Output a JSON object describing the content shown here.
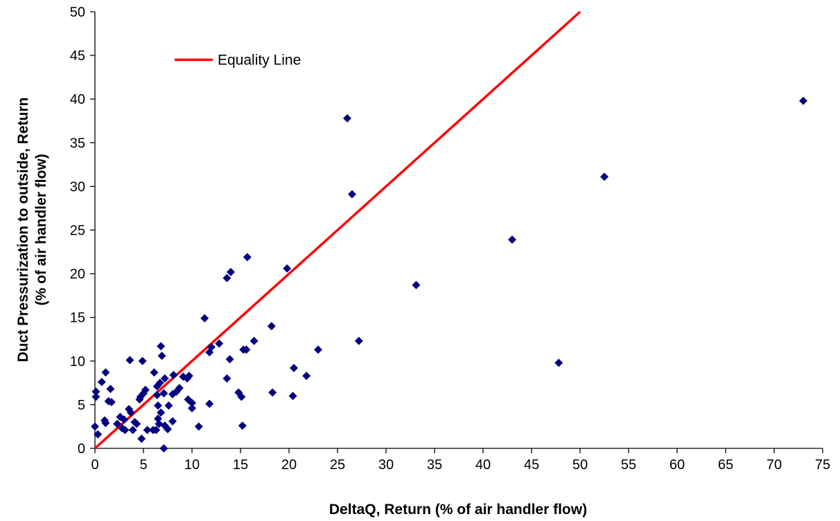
{
  "chart_data": {
    "type": "scatter",
    "xlabel": "DeltaQ, Return (% of air handler flow)",
    "ylabel_lines": [
      "Duct Pressurization to outside, Return",
      "(% of air handler flow)"
    ],
    "xlim": [
      0,
      75
    ],
    "ylim": [
      0,
      50
    ],
    "xticks": [
      0,
      5,
      10,
      15,
      20,
      25,
      30,
      35,
      40,
      45,
      50,
      55,
      60,
      65,
      70,
      75
    ],
    "yticks": [
      0,
      5,
      10,
      15,
      20,
      25,
      30,
      35,
      40,
      45,
      50
    ],
    "grid": false,
    "legend_position": "top-left",
    "lines": [
      {
        "name": "Equality Line",
        "color": "#ff0000",
        "points": [
          [
            0,
            0
          ],
          [
            50,
            50
          ]
        ]
      }
    ],
    "scatter": {
      "color": "#000080",
      "marker": "diamond",
      "points": [
        [
          73.0,
          39.8
        ],
        [
          52.5,
          31.1
        ],
        [
          43.0,
          23.9
        ],
        [
          47.8,
          9.8
        ],
        [
          33.1,
          18.7
        ],
        [
          26.0,
          37.8
        ],
        [
          26.5,
          29.1
        ],
        [
          27.2,
          12.3
        ],
        [
          23.0,
          11.3
        ],
        [
          21.8,
          8.3
        ],
        [
          20.5,
          9.2
        ],
        [
          20.4,
          6.0
        ],
        [
          19.8,
          20.6
        ],
        [
          18.2,
          14.0
        ],
        [
          18.3,
          6.4
        ],
        [
          16.4,
          12.3
        ],
        [
          15.7,
          21.9
        ],
        [
          15.6,
          11.3
        ],
        [
          15.3,
          11.3
        ],
        [
          15.1,
          5.9
        ],
        [
          15.2,
          2.6
        ],
        [
          14.8,
          6.4
        ],
        [
          14.0,
          20.2
        ],
        [
          13.6,
          19.5
        ],
        [
          13.9,
          10.2
        ],
        [
          13.6,
          8.0
        ],
        [
          12.8,
          12.0
        ],
        [
          12.0,
          11.6
        ],
        [
          11.8,
          11.0
        ],
        [
          11.8,
          5.1
        ],
        [
          11.3,
          14.9
        ],
        [
          10.7,
          2.5
        ],
        [
          10.0,
          4.6
        ],
        [
          10.0,
          5.2
        ],
        [
          9.6,
          5.6
        ],
        [
          9.7,
          8.3
        ],
        [
          9.5,
          8.0
        ],
        [
          9.1,
          8.2
        ],
        [
          8.7,
          6.9
        ],
        [
          8.4,
          6.5
        ],
        [
          8.1,
          8.4
        ],
        [
          8.0,
          6.2
        ],
        [
          8.0,
          3.1
        ],
        [
          7.6,
          4.9
        ],
        [
          7.5,
          2.2
        ],
        [
          7.2,
          2.6
        ],
        [
          7.1,
          6.3
        ],
        [
          7.2,
          8.0
        ],
        [
          6.9,
          10.6
        ],
        [
          6.8,
          11.7
        ],
        [
          6.7,
          7.5
        ],
        [
          6.8,
          4.1
        ],
        [
          6.6,
          2.8
        ],
        [
          6.5,
          4.9
        ],
        [
          6.4,
          6.1
        ],
        [
          6.5,
          3.4
        ],
        [
          6.4,
          7.1
        ],
        [
          6.3,
          2.1
        ],
        [
          6.1,
          8.7
        ],
        [
          6.0,
          2.1
        ],
        [
          5.4,
          2.1
        ],
        [
          5.2,
          6.7
        ],
        [
          5.0,
          6.3
        ],
        [
          4.9,
          10.0
        ],
        [
          4.7,
          5.9
        ],
        [
          4.6,
          5.6
        ],
        [
          4.8,
          1.1
        ],
        [
          4.3,
          2.8
        ],
        [
          4.1,
          3.0
        ],
        [
          3.9,
          2.1
        ],
        [
          3.6,
          10.1
        ],
        [
          3.7,
          4.1
        ],
        [
          3.5,
          4.5
        ],
        [
          3.0,
          3.3
        ],
        [
          3.1,
          2.1
        ],
        [
          2.8,
          2.3
        ],
        [
          2.6,
          3.6
        ],
        [
          2.3,
          2.8
        ],
        [
          1.7,
          5.3
        ],
        [
          1.6,
          6.8
        ],
        [
          1.4,
          5.4
        ],
        [
          1.1,
          8.7
        ],
        [
          1.1,
          2.9
        ],
        [
          1.0,
          3.2
        ],
        [
          0.7,
          7.6
        ],
        [
          0.3,
          1.6
        ],
        [
          0.1,
          6.5
        ],
        [
          0.1,
          5.9
        ],
        [
          0.0,
          2.5
        ],
        [
          7.1,
          0.0
        ]
      ]
    }
  }
}
